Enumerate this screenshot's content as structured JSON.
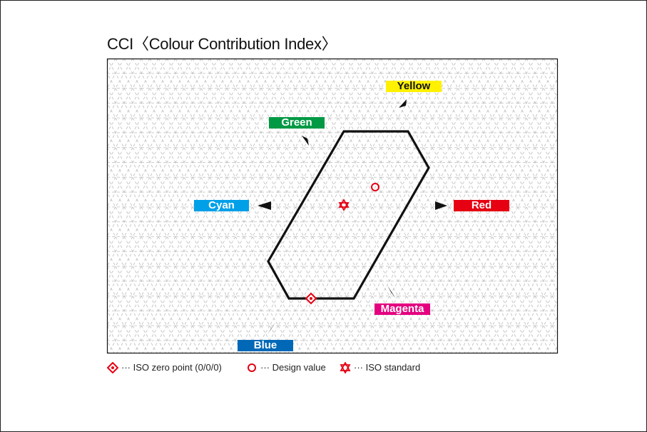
{
  "title": "CCI〈Colour Contribution Index〉",
  "labels": {
    "yellow": "Yellow",
    "green": "Green",
    "cyan": "Cyan",
    "red": "Red",
    "magenta": "Magenta",
    "blue": "Blue"
  },
  "colors": {
    "yellow": "#FFF100",
    "green": "#009944",
    "cyan": "#00A0E9",
    "red": "#E60012",
    "magenta": "#E4007F",
    "blue": "#0068B7",
    "marker_red": "#E60012",
    "outline": "#111111",
    "grid": "#BDBDBD"
  },
  "legend": [
    {
      "icon": "iso-zero-point-diamond-icon",
      "text": "···  ISO zero point (0/0/0)"
    },
    {
      "icon": "design-value-circle-icon",
      "text": "···  Design value"
    },
    {
      "icon": "iso-standard-star-icon",
      "text": "···  ISO standard"
    }
  ]
}
